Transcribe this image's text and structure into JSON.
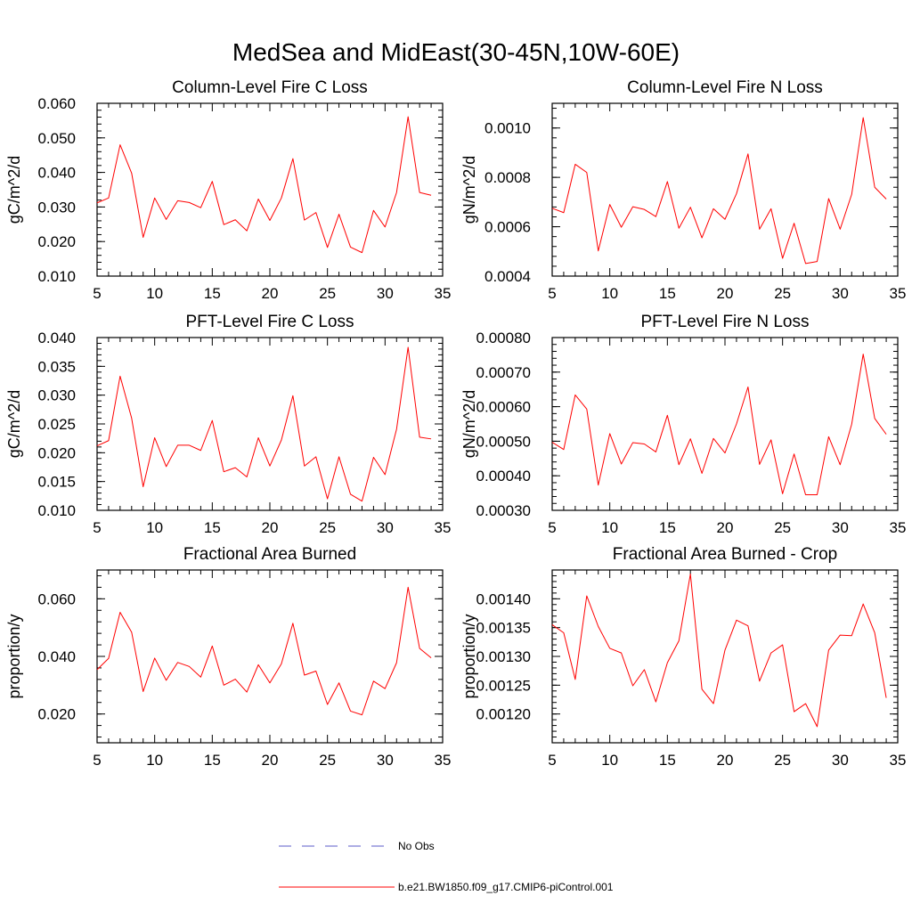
{
  "figure_title": "MedSea and MidEast(30-45N,10W-60E)",
  "colors": {
    "model_line": "#ff0000",
    "obs_line": "#5b5bc8",
    "axis": "#000000"
  },
  "legend": [
    {
      "label": "No Obs",
      "style": "dashed",
      "color": "#5b5bc8"
    },
    {
      "label": "b.e21.BW1850.f09_g17.CMIP6-piControl.001",
      "style": "solid",
      "color": "#ff0000"
    }
  ],
  "chart_data": [
    {
      "type": "line",
      "title": "Column-Level Fire C Loss",
      "xlabel": "",
      "ylabel": "gC/m^2/d",
      "xlim": [
        5,
        35
      ],
      "ylim": [
        0.01,
        0.06
      ],
      "xticks": [
        "5",
        "10",
        "15",
        "20",
        "25",
        "30",
        "35"
      ],
      "yticks": [
        "0.010",
        "0.020",
        "0.030",
        "0.040",
        "0.050",
        "0.060"
      ],
      "series": [
        {
          "name": "b.e21.BW1850.f09_g17.CMIP6-piControl.001",
          "x": [
            5,
            6,
            7,
            8,
            9,
            10,
            11,
            12,
            13,
            14,
            15,
            16,
            17,
            18,
            19,
            20,
            21,
            22,
            23,
            24,
            25,
            26,
            27,
            28,
            29,
            30,
            31,
            32,
            33,
            34
          ],
          "values": [
            0.0312,
            0.0326,
            0.048,
            0.0398,
            0.0212,
            0.0326,
            0.0264,
            0.0318,
            0.0313,
            0.0298,
            0.0374,
            0.0249,
            0.0263,
            0.0231,
            0.0323,
            0.0261,
            0.0326,
            0.044,
            0.0262,
            0.0284,
            0.0183,
            0.0279,
            0.0184,
            0.0168,
            0.029,
            0.0242,
            0.0342,
            0.0561,
            0.0342,
            0.0334
          ]
        }
      ]
    },
    {
      "type": "line",
      "title": "Column-Level Fire N Loss",
      "xlabel": "",
      "ylabel": "gN/m^2/d",
      "xlim": [
        5,
        35
      ],
      "ylim": [
        0.0004,
        0.0011
      ],
      "xticks": [
        "5",
        "10",
        "15",
        "20",
        "25",
        "30",
        "35"
      ],
      "yticks": [
        "0.0004",
        "0.0006",
        "0.0008",
        "0.0010"
      ],
      "series": [
        {
          "name": "b.e21.BW1850.f09_g17.CMIP6-piControl.001",
          "x": [
            5,
            6,
            7,
            8,
            9,
            10,
            11,
            12,
            13,
            14,
            15,
            16,
            17,
            18,
            19,
            20,
            21,
            22,
            23,
            24,
            25,
            26,
            27,
            28,
            29,
            30,
            31,
            32,
            33,
            34
          ],
          "values": [
            0.000675,
            0.000657,
            0.000853,
            0.00082,
            0.000502,
            0.00069,
            0.000598,
            0.000681,
            0.00067,
            0.000641,
            0.000783,
            0.000594,
            0.000679,
            0.000555,
            0.000673,
            0.00063,
            0.000734,
            0.000895,
            0.00059,
            0.000673,
            0.000472,
            0.000614,
            0.000451,
            0.000459,
            0.000714,
            0.00059,
            0.000731,
            0.001042,
            0.00076,
            0.000712
          ]
        }
      ]
    },
    {
      "type": "line",
      "title": "PFT-Level Fire C Loss",
      "xlabel": "",
      "ylabel": "gC/m^2/d",
      "xlim": [
        5,
        35
      ],
      "ylim": [
        0.01,
        0.04
      ],
      "xticks": [
        "5",
        "10",
        "15",
        "20",
        "25",
        "30",
        "35"
      ],
      "yticks": [
        "0.010",
        "0.015",
        "0.020",
        "0.025",
        "0.030",
        "0.035",
        "0.040"
      ],
      "series": [
        {
          "name": "b.e21.BW1850.f09_g17.CMIP6-piControl.001",
          "x": [
            5,
            6,
            7,
            8,
            9,
            10,
            11,
            12,
            13,
            14,
            15,
            16,
            17,
            18,
            19,
            20,
            21,
            22,
            23,
            24,
            25,
            26,
            27,
            28,
            29,
            30,
            31,
            32,
            33,
            34
          ],
          "values": [
            0.0212,
            0.0221,
            0.0333,
            0.026,
            0.0141,
            0.0226,
            0.0176,
            0.0213,
            0.0213,
            0.0204,
            0.0256,
            0.0167,
            0.0174,
            0.0158,
            0.0226,
            0.0177,
            0.0222,
            0.0299,
            0.0177,
            0.0193,
            0.012,
            0.0193,
            0.0128,
            0.0116,
            0.0192,
            0.0162,
            0.0241,
            0.0383,
            0.0227,
            0.0224
          ]
        }
      ]
    },
    {
      "type": "line",
      "title": "PFT-Level Fire N Loss",
      "xlabel": "",
      "ylabel": "gN/m^2/d",
      "xlim": [
        5,
        35
      ],
      "ylim": [
        0.0003,
        0.0008
      ],
      "xticks": [
        "5",
        "10",
        "15",
        "20",
        "25",
        "30",
        "35"
      ],
      "yticks": [
        "0.00030",
        "0.00040",
        "0.00050",
        "0.00060",
        "0.00070",
        "0.00080"
      ],
      "series": [
        {
          "name": "b.e21.BW1850.f09_g17.CMIP6-piControl.001",
          "x": [
            5,
            6,
            7,
            8,
            9,
            10,
            11,
            12,
            13,
            14,
            15,
            16,
            17,
            18,
            19,
            20,
            21,
            22,
            23,
            24,
            25,
            26,
            27,
            28,
            29,
            30,
            31,
            32,
            33,
            34
          ],
          "values": [
            0.000497,
            0.000476,
            0.000634,
            0.000593,
            0.000373,
            0.000522,
            0.000434,
            0.000496,
            0.000492,
            0.000469,
            0.000575,
            0.000432,
            0.000507,
            0.000407,
            0.000508,
            0.000466,
            0.00055,
            0.000657,
            0.000433,
            0.000504,
            0.000348,
            0.000463,
            0.000345,
            0.000345,
            0.000513,
            0.000432,
            0.000549,
            0.000752,
            0.000566,
            0.00052
          ]
        }
      ]
    },
    {
      "type": "line",
      "title": "Fractional Area Burned",
      "xlabel": "",
      "ylabel": "proportion/y",
      "xlim": [
        5,
        35
      ],
      "ylim": [
        0.01,
        0.07
      ],
      "xticks": [
        "5",
        "10",
        "15",
        "20",
        "25",
        "30",
        "35"
      ],
      "yticks": [
        "0.020",
        "0.040",
        "0.060"
      ],
      "series": [
        {
          "name": "b.e21.BW1850.f09_g17.CMIP6-piControl.001",
          "x": [
            5,
            6,
            7,
            8,
            9,
            10,
            11,
            12,
            13,
            14,
            15,
            16,
            17,
            18,
            19,
            20,
            21,
            22,
            23,
            24,
            25,
            26,
            27,
            28,
            29,
            30,
            31,
            32,
            33,
            34
          ],
          "values": [
            0.0354,
            0.0393,
            0.0553,
            0.0484,
            0.0278,
            0.0394,
            0.0317,
            0.0379,
            0.0365,
            0.0328,
            0.0436,
            0.03,
            0.0321,
            0.0276,
            0.0371,
            0.0308,
            0.0374,
            0.0515,
            0.0335,
            0.0349,
            0.0233,
            0.0308,
            0.021,
            0.0197,
            0.0314,
            0.0288,
            0.0378,
            0.064,
            0.0428,
            0.0395
          ]
        }
      ]
    },
    {
      "type": "line",
      "title": "Fractional Area Burned - Crop",
      "xlabel": "",
      "ylabel": "proportion/y",
      "xlim": [
        5,
        35
      ],
      "ylim": [
        0.00115,
        0.00145
      ],
      "xticks": [
        "5",
        "10",
        "15",
        "20",
        "25",
        "30",
        "35"
      ],
      "yticks": [
        "0.00120",
        "0.00125",
        "0.00130",
        "0.00135",
        "0.00140"
      ],
      "series": [
        {
          "name": "b.e21.BW1850.f09_g17.CMIP6-piControl.001",
          "x": [
            5,
            6,
            7,
            8,
            9,
            10,
            11,
            12,
            13,
            14,
            15,
            16,
            17,
            18,
            19,
            20,
            21,
            22,
            23,
            24,
            25,
            26,
            27,
            28,
            29,
            30,
            31,
            32,
            33,
            34
          ],
          "values": [
            0.001355,
            0.001341,
            0.00126,
            0.001405,
            0.001352,
            0.001314,
            0.001306,
            0.001249,
            0.001277,
            0.001221,
            0.001289,
            0.001327,
            0.001443,
            0.001243,
            0.001218,
            0.001311,
            0.001363,
            0.001353,
            0.001257,
            0.001306,
            0.00132,
            0.001204,
            0.001218,
            0.001178,
            0.001311,
            0.001337,
            0.001336,
            0.001391,
            0.001341,
            0.001228
          ]
        }
      ]
    }
  ]
}
